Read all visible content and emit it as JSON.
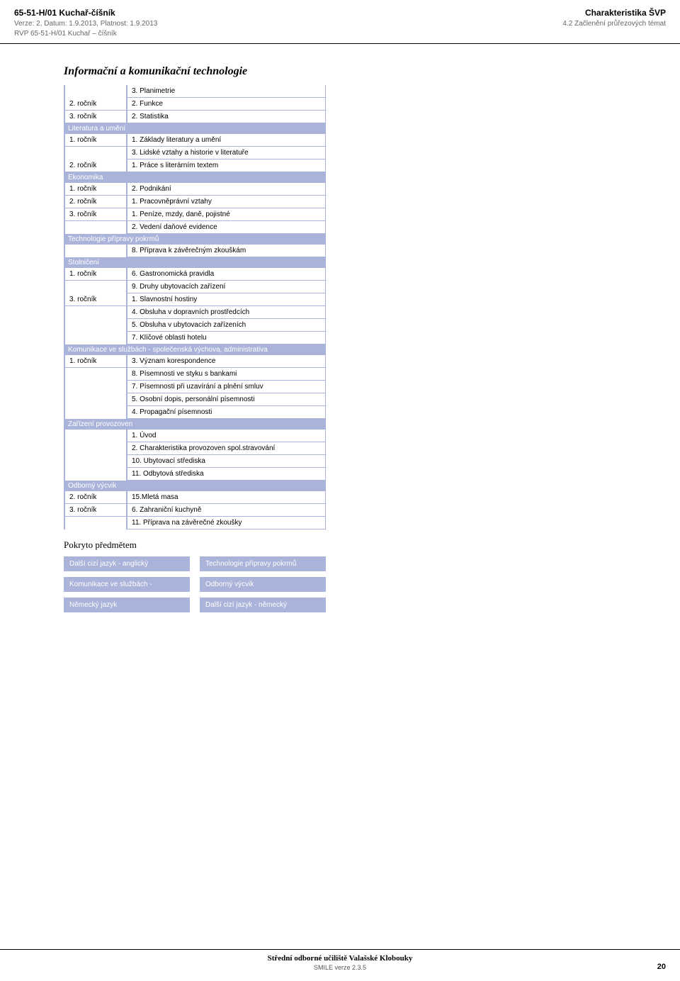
{
  "header": {
    "left": {
      "code_title": "65-51-H/01  Kuchař-číšník",
      "version": "Verze: 2, Datum: 1.9.2013, Platnost: 1.9.2013",
      "rvp": "RVP 65-51-H/01 Kuchař – číšník"
    },
    "right": {
      "title": "Charakteristika ŠVP",
      "subtitle": "4.2 Začlenění průřezových témat"
    }
  },
  "page_title": "Informační a komunikační technologie",
  "sections": [
    {
      "header": null,
      "rows": [
        {
          "left": "",
          "right": "3. Planimetrie"
        },
        {
          "left": "2. ročník",
          "right": "2. Funkce"
        },
        {
          "left": "3. ročník",
          "right": "2. Statistika"
        }
      ]
    },
    {
      "header": "Literatura a umění",
      "rows": [
        {
          "left": "1. ročník",
          "right": "1. Základy literatury a umění"
        },
        {
          "left": "",
          "right": "3. Lidské vztahy a historie v literatuře"
        },
        {
          "left": "2. ročník",
          "right": "1. Práce s literárním textem"
        }
      ]
    },
    {
      "header": "Ekonomika",
      "rows": [
        {
          "left": "1. ročník",
          "right": "2. Podnikání"
        },
        {
          "left": "2. ročník",
          "right": "1. Pracovněprávní vztahy"
        },
        {
          "left": "3. ročník",
          "right": "1. Peníze, mzdy, daně, pojistné"
        },
        {
          "left": "",
          "right": "2. Vedení daňové evidence"
        }
      ]
    },
    {
      "header": "Technologie přípravy pokrmů",
      "rows": [
        {
          "left": "",
          "right": "8. Příprava k závěrečným zkouškám"
        }
      ]
    },
    {
      "header": "Stolničení",
      "rows": [
        {
          "left": "1. ročník",
          "right": "6. Gastronomická pravidla"
        },
        {
          "left": "",
          "right": "9. Druhy ubytovacích zařízení"
        },
        {
          "left": "3. ročník",
          "right": "1. Slavnostní hostiny"
        },
        {
          "left": "",
          "right": "4. Obsluha v dopravních prostředcích"
        },
        {
          "left": "",
          "right": "5. Obsluha v ubytovacích zařízeních"
        },
        {
          "left": "",
          "right": "7. Klíčové oblasti hotelu"
        }
      ]
    },
    {
      "header": "Komunikace ve službách - společenská výchova, administrativa",
      "rows": [
        {
          "left": "1. ročník",
          "right": "3. Význam korespondence"
        },
        {
          "left": "",
          "right": "8. Písemnosti ve styku s bankami"
        },
        {
          "left": "",
          "right": "7. Písemnosti při uzavírání a plnění smluv"
        },
        {
          "left": "",
          "right": "5. Osobní dopis, personální písemnosti"
        },
        {
          "left": "",
          "right": "4. Propagační písemnosti"
        }
      ]
    },
    {
      "header": "Zařízení provozoven",
      "rows": [
        {
          "left": "",
          "right": "1. Úvod"
        },
        {
          "left": "",
          "right": "2. Charakteristika provozoven spol.stravování"
        },
        {
          "left": "",
          "right": "10. Ubytovací střediska"
        },
        {
          "left": "",
          "right": "11. Odbytová střediska"
        }
      ]
    },
    {
      "header": "Odborný výcvik",
      "rows": [
        {
          "left": "2. ročník",
          "right": "15.Mletá masa"
        },
        {
          "left": "3. ročník",
          "right": "6. Zahraniční kuchyně"
        },
        {
          "left": "",
          "right": "11. Příprava na závěrečné zkoušky"
        }
      ]
    }
  ],
  "pokryto_title": "Pokryto předmětem",
  "boxes_left": [
    "Další cizí jazyk - anglický",
    "Komunikace ve službách -",
    "Německý jazyk"
  ],
  "boxes_right": [
    "Technologie přípravy pokrmů",
    "Odborný výcvik",
    "Další cizí jazyk - německý"
  ],
  "footer": {
    "school": "Střední odborné učiliště Valašské Klobouky",
    "version": "SMILE verze 2.3.5",
    "page": "20"
  }
}
